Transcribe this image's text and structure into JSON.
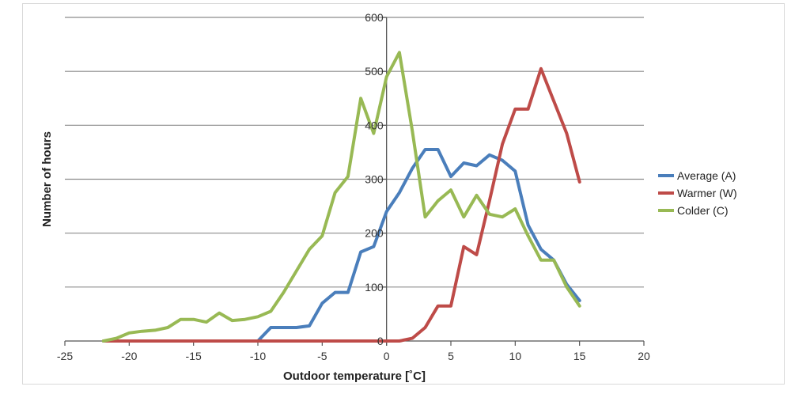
{
  "chart_data": {
    "type": "line",
    "title": "",
    "xlabel": "Outdoor temperature [˚C]",
    "ylabel": "Number of hours",
    "xlim": [
      -25,
      20
    ],
    "ylim": [
      0,
      600
    ],
    "x_ticks": [
      -25,
      -20,
      -15,
      -10,
      -5,
      0,
      5,
      10,
      15,
      20
    ],
    "y_ticks": [
      0,
      100,
      200,
      300,
      400,
      500,
      600
    ],
    "grid": "horizontal",
    "legend_position": "right",
    "series": [
      {
        "name": "Average (A)",
        "color": "#4a7ebb",
        "x": [
          -22,
          -21,
          -20,
          -19,
          -18,
          -17,
          -16,
          -15,
          -14,
          -13,
          -12,
          -11,
          -10,
          -9,
          -8,
          -7,
          -6,
          -5,
          -4,
          -3,
          -2,
          -1,
          0,
          1,
          2,
          3,
          4,
          5,
          6,
          7,
          8,
          9,
          10,
          11,
          12,
          13,
          14,
          15
        ],
        "y": [
          0,
          0,
          0,
          0,
          0,
          0,
          0,
          0,
          0,
          0,
          0,
          0,
          0,
          25,
          25,
          25,
          28,
          70,
          90,
          90,
          165,
          175,
          240,
          275,
          320,
          355,
          355,
          305,
          330,
          325,
          345,
          335,
          315,
          215,
          170,
          150,
          105,
          75
        ]
      },
      {
        "name": "Warmer (W)",
        "color": "#be4b48",
        "x": [
          -22,
          -21,
          -20,
          -19,
          -18,
          -17,
          -16,
          -15,
          -14,
          -13,
          -12,
          -11,
          -10,
          -9,
          -8,
          -7,
          -6,
          -5,
          -4,
          -3,
          -2,
          -1,
          0,
          1,
          2,
          3,
          4,
          5,
          6,
          7,
          8,
          9,
          10,
          11,
          12,
          13,
          14,
          15
        ],
        "y": [
          0,
          0,
          0,
          0,
          0,
          0,
          0,
          0,
          0,
          0,
          0,
          0,
          0,
          0,
          0,
          0,
          0,
          0,
          0,
          0,
          0,
          0,
          0,
          0,
          5,
          25,
          65,
          65,
          175,
          160,
          260,
          365,
          430,
          430,
          505,
          445,
          385,
          295
        ]
      },
      {
        "name": "Colder (C)",
        "color": "#98b954",
        "x": [
          -22,
          -21,
          -20,
          -19,
          -18,
          -17,
          -16,
          -15,
          -14,
          -13,
          -12,
          -11,
          -10,
          -9,
          -8,
          -7,
          -6,
          -5,
          -4,
          -3,
          -2,
          -1,
          0,
          1,
          2,
          3,
          4,
          5,
          6,
          7,
          8,
          9,
          10,
          11,
          12,
          13,
          14,
          15
        ],
        "y": [
          0,
          5,
          15,
          18,
          20,
          25,
          40,
          40,
          35,
          52,
          38,
          40,
          45,
          55,
          90,
          130,
          170,
          195,
          275,
          305,
          450,
          385,
          490,
          535,
          390,
          230,
          260,
          280,
          230,
          270,
          235,
          230,
          245,
          195,
          150,
          150,
          100,
          65
        ]
      }
    ]
  }
}
